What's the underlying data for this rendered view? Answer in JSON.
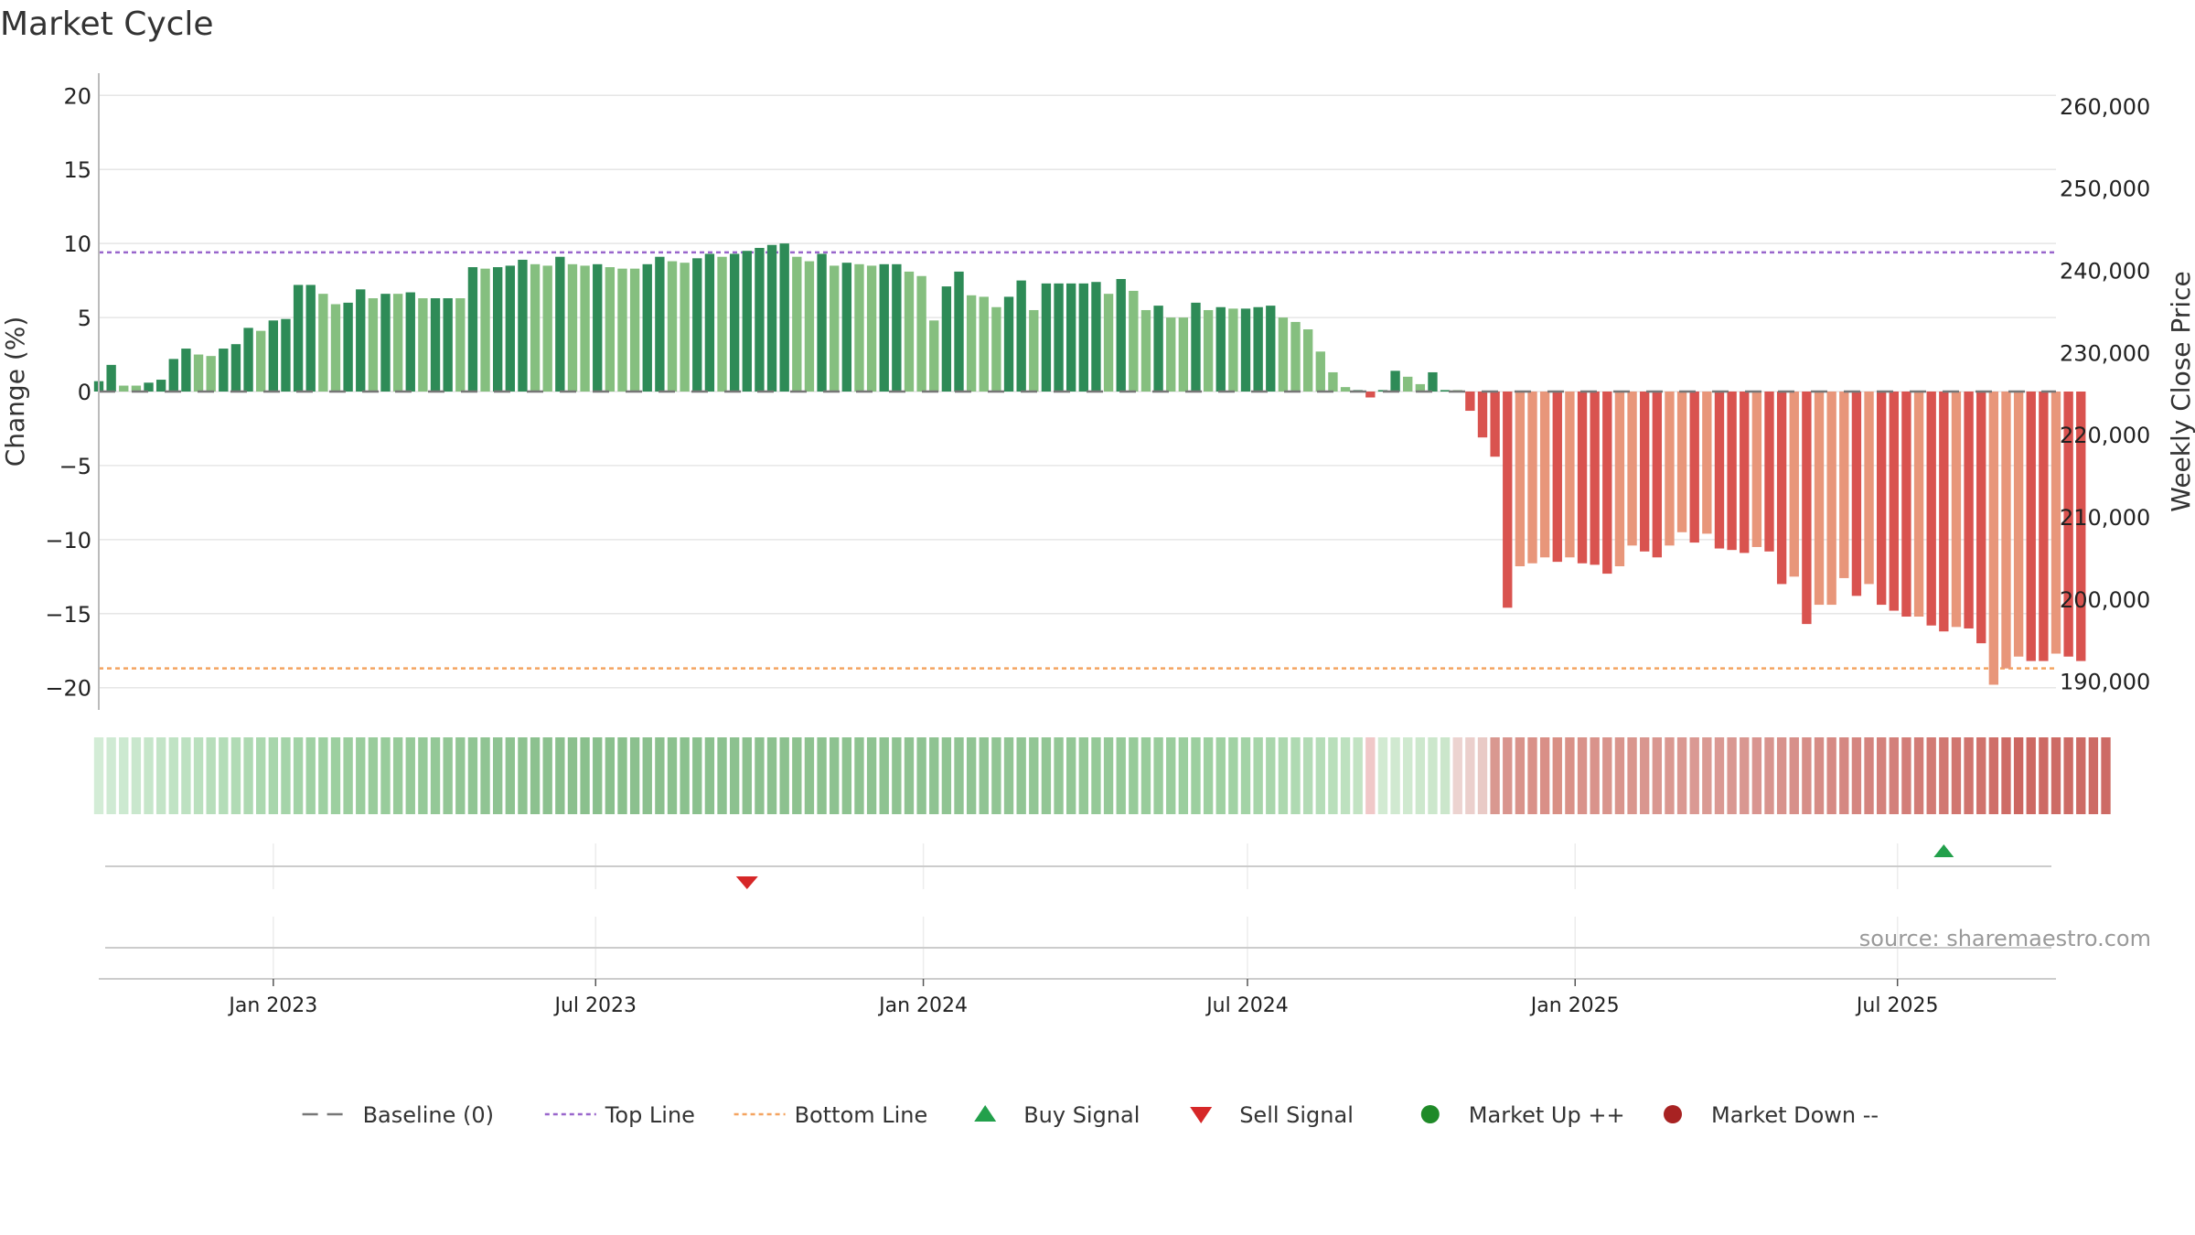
{
  "chart_data": {
    "type": "bar",
    "title": "Market Cycle",
    "ylabel": "Change (%)",
    "y2label": "Weekly Close Price",
    "ylim": [
      -21.5,
      21.5
    ],
    "yticks": [
      20,
      15,
      10,
      5,
      0,
      -5,
      -10,
      -15,
      -20
    ],
    "ytick_labels": [
      "20",
      "15",
      "10",
      "5",
      "0",
      "−5",
      "−10",
      "−15",
      "−20"
    ],
    "y2lim": [
      186500,
      264000
    ],
    "y2ticks": [
      260000,
      250000,
      240000,
      230000,
      220000,
      210000,
      200000,
      190000
    ],
    "y2tick_labels": [
      "260,000",
      "250,000",
      "240,000",
      "230,000",
      "220,000",
      "210,000",
      "200,000",
      "190,000"
    ],
    "x_start": "2022-09-25",
    "x_end": "2025-09-28",
    "xticks": [
      {
        "date": "2023-01-01",
        "label": "Jan 2023"
      },
      {
        "date": "2023-07-01",
        "label": "Jul 2023"
      },
      {
        "date": "2024-01-01",
        "label": "Jan 2024"
      },
      {
        "date": "2024-07-01",
        "label": "Jul 2024"
      },
      {
        "date": "2025-01-01",
        "label": "Jan 2025"
      },
      {
        "date": "2025-07-01",
        "label": "Jul 2025"
      }
    ],
    "bar_start_date": "2022-09-25",
    "bar_interval_days": 7,
    "values": [
      0.7,
      1.8,
      0.4,
      0.4,
      0.6,
      0.8,
      2.2,
      2.9,
      2.5,
      2.4,
      2.9,
      3.2,
      4.3,
      4.1,
      4.8,
      4.9,
      7.2,
      7.2,
      6.6,
      5.9,
      6.0,
      6.9,
      6.3,
      6.6,
      6.6,
      6.7,
      6.3,
      6.3,
      6.3,
      6.3,
      8.4,
      8.3,
      8.4,
      8.5,
      8.9,
      8.6,
      8.5,
      9.1,
      8.6,
      8.5,
      8.6,
      8.4,
      8.3,
      8.3,
      8.6,
      9.1,
      8.8,
      8.7,
      9.0,
      9.3,
      9.1,
      9.3,
      9.5,
      9.7,
      9.9,
      10.0,
      9.1,
      8.8,
      9.3,
      8.5,
      8.7,
      8.6,
      8.5,
      8.6,
      8.6,
      8.1,
      7.8,
      4.8,
      7.1,
      8.1,
      6.5,
      6.4,
      5.7,
      6.4,
      7.5,
      5.5,
      7.3,
      7.3,
      7.3,
      7.3,
      7.4,
      6.6,
      7.6,
      6.8,
      5.5,
      5.8,
      5.0,
      5.0,
      6.0,
      5.5,
      5.7,
      5.6,
      5.6,
      5.7,
      5.8,
      5.0,
      4.7,
      4.2,
      2.7,
      1.3,
      0.3,
      0.1,
      -0.4,
      0.1,
      1.4,
      1.0,
      0.5,
      1.3,
      0.1,
      0.1,
      -1.3,
      -3.1,
      -4.4,
      -14.6,
      -11.8,
      -11.6,
      -11.2,
      -11.5,
      -11.2,
      -11.6,
      -11.7,
      -12.3,
      -11.8,
      -10.4,
      -10.8,
      -11.2,
      -10.4,
      -9.5,
      -10.2,
      -9.6,
      -10.6,
      -10.7,
      -10.9,
      -10.5,
      -10.8,
      -13.0,
      -12.5,
      -15.7,
      -14.4,
      -14.4,
      -12.6,
      -13.8,
      -13.0,
      -14.4,
      -14.8,
      -15.2,
      -15.2,
      -15.8,
      -16.2,
      -15.9,
      -16.0,
      -17.0,
      -19.8,
      -18.7,
      -17.9,
      -18.2,
      -18.2,
      -17.7,
      -17.9,
      -18.2
    ],
    "bar_colors": [
      "#2e8b57",
      "#2e8b57",
      "#85bf7f",
      "#85bf7f",
      "#2e8b57",
      "#2e8b57",
      "#2e8b57",
      "#2e8b57",
      "#85bf7f",
      "#85bf7f",
      "#2e8b57",
      "#2e8b57",
      "#2e8b57",
      "#85bf7f",
      "#2e8b57",
      "#2e8b57",
      "#2e8b57",
      "#2e8b57",
      "#85bf7f",
      "#85bf7f",
      "#2e8b57",
      "#2e8b57",
      "#85bf7f",
      "#2e8b57",
      "#85bf7f",
      "#2e8b57",
      "#85bf7f",
      "#2e8b57",
      "#2e8b57",
      "#85bf7f",
      "#2e8b57",
      "#85bf7f",
      "#2e8b57",
      "#2e8b57",
      "#2e8b57",
      "#85bf7f",
      "#85bf7f",
      "#2e8b57",
      "#85bf7f",
      "#85bf7f",
      "#2e8b57",
      "#85bf7f",
      "#85bf7f",
      "#85bf7f",
      "#2e8b57",
      "#2e8b57",
      "#85bf7f",
      "#85bf7f",
      "#2e8b57",
      "#2e8b57",
      "#85bf7f",
      "#2e8b57",
      "#2e8b57",
      "#2e8b57",
      "#2e8b57",
      "#2e8b57",
      "#85bf7f",
      "#85bf7f",
      "#2e8b57",
      "#85bf7f",
      "#2e8b57",
      "#85bf7f",
      "#85bf7f",
      "#2e8b57",
      "#2e8b57",
      "#85bf7f",
      "#85bf7f",
      "#85bf7f",
      "#2e8b57",
      "#2e8b57",
      "#85bf7f",
      "#85bf7f",
      "#85bf7f",
      "#2e8b57",
      "#2e8b57",
      "#85bf7f",
      "#2e8b57",
      "#2e8b57",
      "#2e8b57",
      "#2e8b57",
      "#2e8b57",
      "#85bf7f",
      "#2e8b57",
      "#85bf7f",
      "#85bf7f",
      "#2e8b57",
      "#85bf7f",
      "#85bf7f",
      "#2e8b57",
      "#85bf7f",
      "#2e8b57",
      "#85bf7f",
      "#2e8b57",
      "#2e8b57",
      "#2e8b57",
      "#85bf7f",
      "#85bf7f",
      "#85bf7f",
      "#85bf7f",
      "#85bf7f",
      "#85bf7f",
      "#2e8b57",
      "#d9534f",
      "#2e8b57",
      "#2e8b57",
      "#85bf7f",
      "#85bf7f",
      "#2e8b57",
      "#2e8b57",
      "#85bf7f",
      "#d9534f",
      "#d9534f",
      "#d9534f",
      "#d9534f",
      "#e8967a",
      "#e8967a",
      "#e8967a",
      "#d9534f",
      "#e8967a",
      "#d9534f",
      "#d9534f",
      "#d9534f",
      "#e8967a",
      "#e8967a",
      "#d9534f",
      "#d9534f",
      "#e8967a",
      "#e8967a",
      "#d9534f",
      "#e8967a",
      "#d9534f",
      "#d9534f",
      "#d9534f",
      "#e8967a",
      "#d9534f",
      "#d9534f",
      "#e8967a",
      "#d9534f",
      "#e8967a",
      "#e8967a",
      "#e8967a",
      "#d9534f",
      "#e8967a",
      "#d9534f",
      "#d9534f",
      "#d9534f",
      "#e8967a",
      "#d9534f",
      "#d9534f",
      "#e8967a",
      "#d9534f",
      "#d9534f",
      "#e8967a",
      "#e8967a",
      "#e8967a",
      "#d9534f",
      "#d9534f",
      "#e8967a",
      "#d9534f",
      "#d9534f"
    ],
    "heat_colors": [
      "#d3ecd6",
      "#cfead3",
      "#cce9d0",
      "#c9e7cd",
      "#c6e6ca",
      "#c3e4c7",
      "#c0e3c4",
      "#bde1c1",
      "#bae0be",
      "#b7debb",
      "#b4ddb8",
      "#b1dbb5",
      "#aed9b2",
      "#abd8af",
      "#a8d6ac",
      "#a5d4a9",
      "#a2d3a6",
      "#9fd1a3",
      "#9dd0a1",
      "#9ccf9f",
      "#9bce9e",
      "#9acd9d",
      "#99cc9c",
      "#98cc9b",
      "#97cb9a",
      "#96ca99",
      "#95c998",
      "#94c897",
      "#93c796",
      "#92c695",
      "#91c594",
      "#90c493",
      "#8fc392",
      "#8ec391",
      "#8dc290",
      "#8cc18f",
      "#8cc18f",
      "#8bc08e",
      "#8bc08e",
      "#8ac08d",
      "#8ac08d",
      "#8ac08d",
      "#8ac08d",
      "#8bc08e",
      "#8bc08e",
      "#8bc08e",
      "#8bc18e",
      "#8bc18e",
      "#8bc18e",
      "#8bc18e",
      "#8cc18f",
      "#8cc18f",
      "#8cc18f",
      "#8cc18f",
      "#8cc18f",
      "#8cc18f",
      "#8dc290",
      "#8dc290",
      "#8dc290",
      "#8dc290",
      "#8ec391",
      "#8ec391",
      "#8ec391",
      "#8ec391",
      "#8fc392",
      "#8fc392",
      "#8fc392",
      "#8fc392",
      "#90c493",
      "#90c493",
      "#90c493",
      "#90c493",
      "#91c594",
      "#91c594",
      "#91c594",
      "#92c695",
      "#92c695",
      "#93c796",
      "#93c796",
      "#94c897",
      "#95c998",
      "#95c998",
      "#96ca99",
      "#97cb9a",
      "#98cc9b",
      "#99cc9c",
      "#9acd9d",
      "#9bce9e",
      "#9ccf9f",
      "#9dd0a0",
      "#9fd1a2",
      "#a1d2a4",
      "#a3d3a6",
      "#a6d5a9",
      "#a9d6ac",
      "#acd8af",
      "#afdab2",
      "#b2dbb5",
      "#b5ddb8",
      "#b9dfbb",
      "#bde1bf",
      "#c2e3c3",
      "#f0c8c8",
      "#d2ead2",
      "#d0e9d0",
      "#cfe9cf",
      "#cde8cd",
      "#cce7cc",
      "#cbe6cb",
      "#ecd3d0",
      "#ebcfcc",
      "#e9cac6",
      "#d99890",
      "#d9958e",
      "#d9938b",
      "#d99189",
      "#d98f87",
      "#d99085",
      "#d99188",
      "#d9928a",
      "#d9938b",
      "#d9948c",
      "#d9958d",
      "#d9968e",
      "#d9968f",
      "#d99790",
      "#da9891",
      "#da9892",
      "#da9993",
      "#da9a93",
      "#da9993",
      "#d99892",
      "#d99791",
      "#d99590",
      "#d8948e",
      "#d8928c",
      "#d7908a",
      "#d78e88",
      "#d68c86",
      "#d68a84",
      "#d58882",
      "#d58680",
      "#d4847e",
      "#d4827c",
      "#d3807a",
      "#d37e78",
      "#d27c76",
      "#d27a74",
      "#d17872",
      "#d17670",
      "#d0746e",
      "#d0726c",
      "#cf6f69",
      "#ce6c66",
      "#cc6660",
      "#cd6963",
      "#cd6a64",
      "#cd6b65",
      "#cd6b65",
      "#cd6b65",
      "#cd6b65",
      "#cd6b65"
    ],
    "top_line": 9.4,
    "bottom_line": -18.7,
    "signals": [
      {
        "type": "sell",
        "date": "2023-09-24"
      },
      {
        "type": "buy",
        "date": "2025-07-27"
      }
    ],
    "colors": {
      "up_strong": "#2e8b57",
      "up_weak": "#85bf7f",
      "down_strong": "#d9534f",
      "down_weak": "#e8967a",
      "top_line": "#9966cc",
      "bottom_line": "#f4a460",
      "buy": "#22a04b",
      "sell": "#d62728",
      "market_up": "#1f8a28",
      "market_down": "#a82222",
      "grid": "#e6e6e6",
      "baseline": "#777777"
    },
    "legend_placement": "bottom-center",
    "legend": [
      {
        "label": "Baseline (0)",
        "marker": "dash",
        "color": "#777777"
      },
      {
        "label": "Top Line",
        "marker": "dotted",
        "color": "#9966cc"
      },
      {
        "label": "Bottom Line",
        "marker": "dotted",
        "color": "#f4a460"
      },
      {
        "label": "Buy Signal",
        "marker": "triangle-up",
        "color": "#22a04b"
      },
      {
        "label": "Sell Signal",
        "marker": "triangle-down",
        "color": "#d62728"
      },
      {
        "label": "Market Up ++",
        "marker": "circle",
        "color": "#1f8a28"
      },
      {
        "label": "Market Down --",
        "marker": "circle",
        "color": "#a82222"
      }
    ],
    "source": "source: sharemaestro.com"
  }
}
